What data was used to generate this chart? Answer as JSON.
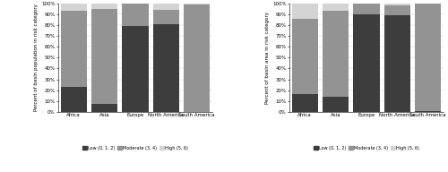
{
  "continents": [
    "Africa",
    "Asia",
    "Europe",
    "North America",
    "South America"
  ],
  "pop_low": [
    23,
    7,
    79,
    81,
    0
  ],
  "pop_moderate": [
    70,
    88,
    21,
    13,
    99
  ],
  "pop_high": [
    7,
    5,
    0,
    6,
    1
  ],
  "area_low": [
    16,
    14,
    90,
    89,
    1
  ],
  "area_moderate": [
    70,
    79,
    10,
    9,
    99
  ],
  "area_high": [
    14,
    7,
    0,
    2,
    0
  ],
  "color_low": "#3d3d3d",
  "color_moderate": "#939393",
  "color_high": "#d4d4d4",
  "ylabel_left": "Percent of basin population in risk category",
  "ylabel_right": "Percent of basin area in risk category",
  "legend_labels": [
    "Low (0, 1, 2)",
    "Moderate (3, 4)",
    "High (5, 6)"
  ],
  "yticks": [
    0,
    10,
    20,
    30,
    40,
    50,
    60,
    70,
    80,
    90,
    100
  ],
  "yticklabels": [
    "0%",
    "10%",
    "20%",
    "30%",
    "40%",
    "50%",
    "60%",
    "70%",
    "80%",
    "90%",
    "100%"
  ]
}
